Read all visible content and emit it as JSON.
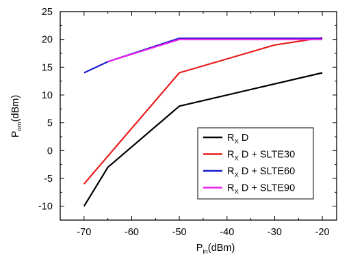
{
  "chart_data": {
    "type": "line",
    "xlabel": {
      "main": "P",
      "sub": "in",
      "rest": "(dBm)"
    },
    "ylabel": {
      "main": "P",
      "sub": "om",
      "rest": "(dBm)"
    },
    "xlim": [
      -75,
      -17
    ],
    "ylim": [
      -12.5,
      25
    ],
    "xticks": [
      -70,
      -60,
      -50,
      -40,
      -30,
      -20
    ],
    "yticks": [
      -10,
      -5,
      0,
      5,
      10,
      15,
      20,
      25
    ],
    "grid": false,
    "legend_position": "bottom-right",
    "series": [
      {
        "name": "RX D",
        "label_main": "R",
        "label_sub": "X",
        "label_rest": " D",
        "color": "#000000",
        "x": [
          -70,
          -65,
          -50,
          -20
        ],
        "y": [
          -10,
          -3,
          8,
          14
        ]
      },
      {
        "name": "RX D + SLTE30",
        "label_main": "R",
        "label_sub": "X",
        "label_rest": " D + SLTE30",
        "color": "#e81c1c",
        "x": [
          -70,
          -50,
          -30,
          -20
        ],
        "y": [
          -6,
          14,
          19,
          20.3
        ]
      },
      {
        "name": "RX D + SLTE60",
        "label_main": "R",
        "label_sub": "X",
        "label_rest": " D + SLTE60",
        "color": "#1a1acc",
        "x": [
          -70,
          -65,
          -50,
          -20
        ],
        "y": [
          14,
          16,
          20.2,
          20.2
        ]
      },
      {
        "name": "RX D + SLTE90",
        "label_main": "R",
        "label_sub": "X",
        "label_rest": " D + SLTE90",
        "color": "#ee20ee",
        "x": [
          -65,
          -50,
          -20
        ],
        "y": [
          16,
          20,
          20
        ]
      }
    ]
  }
}
